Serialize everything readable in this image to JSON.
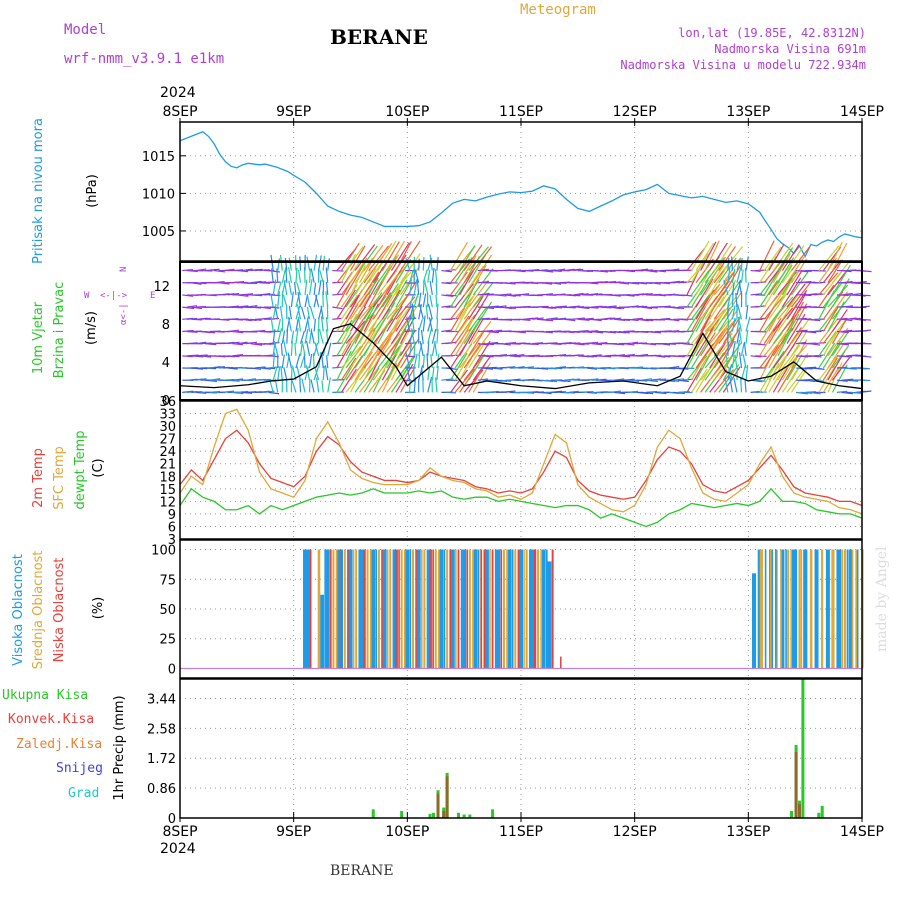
{
  "header": {
    "model_label": "Model",
    "model_name": "wrf-nmm_v3.9.1 e1km",
    "station": "BERANE",
    "meteogram": "Meteogram",
    "lonlat": "lon,lat (19.85E, 42.8312N)",
    "elevation": "Nadmorska Visina 691m",
    "model_elevation": "Nadmorska Visina u modelu 722.934m",
    "year_top": "2024",
    "year_bottom": "2024",
    "footer_station": "BERANE",
    "watermark": "made by Angel"
  },
  "colors": {
    "pressure": "#1e9be6",
    "temp2m": "#e8413c",
    "sfc": "#e0a83a",
    "dewpt": "#28c828",
    "purple": "#b040d0",
    "cloud_high": "#1e9be6",
    "cloud_mid": "#e0a83a",
    "cloud_low": "#e8413c",
    "precip_total": "#28c828",
    "precip_conv": "#e8413c",
    "precip_frz": "#f08030",
    "precip_snow": "#4040e0",
    "precip_hail": "#20c8c8"
  },
  "chart_data": [
    {
      "type": "line",
      "panel": "pressure",
      "ylabel_main": "Pritisak na nivou mora",
      "ylabel_unit": "(hPa)",
      "x_ticks": [
        "8SEP",
        "9SEP",
        "10SEP",
        "11SEP",
        "12SEP",
        "13SEP",
        "14SEP"
      ],
      "ylim": [
        1001,
        1019.5
      ],
      "y_ticks": [
        "1005",
        "1010",
        "1015"
      ],
      "series": [
        {
          "x": [
            0,
            0.05,
            0.1,
            0.15,
            0.2,
            0.25,
            0.3,
            0.35,
            0.4,
            0.45,
            0.5,
            0.55,
            0.6,
            0.65,
            0.7,
            0.75,
            0.8,
            0.85,
            0.9,
            0.95,
            1.0,
            1.1,
            1.2,
            1.3,
            1.4,
            1.5,
            1.6,
            1.7,
            1.8,
            1.9,
            2.0,
            2.1,
            2.2,
            2.3,
            2.4,
            2.5,
            2.6,
            2.7,
            2.8,
            2.9,
            3.0,
            3.1,
            3.2,
            3.3,
            3.4,
            3.5,
            3.6,
            3.7,
            3.8,
            3.9,
            4.0,
            4.1,
            4.2,
            4.3,
            4.4,
            4.5,
            4.6,
            4.7,
            4.8,
            4.9,
            5.0,
            5.1,
            5.15,
            5.2,
            5.25,
            5.3,
            5.35,
            5.4,
            5.45,
            5.5,
            5.55,
            5.6,
            5.65,
            5.7,
            5.75,
            5.8,
            5.85,
            5.9,
            5.95,
            6.0
          ],
          "values": [
            1017.0,
            1017.3,
            1017.6,
            1017.9,
            1018.2,
            1017.6,
            1016.6,
            1015.2,
            1014.2,
            1013.6,
            1013.4,
            1013.8,
            1014.0,
            1013.9,
            1013.8,
            1013.9,
            1013.7,
            1013.5,
            1013.2,
            1012.9,
            1012.4,
            1011.5,
            1010.0,
            1008.3,
            1007.6,
            1007.1,
            1006.8,
            1006.2,
            1005.6,
            1005.6,
            1005.6,
            1005.7,
            1006.2,
            1007.4,
            1008.7,
            1009.2,
            1009.0,
            1009.5,
            1009.9,
            1010.2,
            1010.1,
            1010.3,
            1011.0,
            1010.6,
            1009.2,
            1008.0,
            1007.6,
            1008.3,
            1009.0,
            1009.8,
            1010.2,
            1010.5,
            1011.2,
            1010.0,
            1009.7,
            1009.4,
            1009.6,
            1009.2,
            1008.8,
            1009.0,
            1008.6,
            1007.5,
            1006.3,
            1005.2,
            1004.0,
            1003.3,
            1002.8,
            1002.0,
            1003.0,
            1001.6,
            1003.2,
            1003.0,
            1003.5,
            1003.8,
            1003.6,
            1004.2,
            1004.6,
            1004.4,
            1004.2,
            1004.1
          ]
        }
      ]
    },
    {
      "type": "line",
      "panel": "wind",
      "ylabel_main": "10m Vjetar",
      "ylabel_sub": "Brzina i Pravac",
      "ylabel_unit": "(m/s)",
      "compass": [
        "N",
        "E",
        "W"
      ],
      "ylim": [
        0,
        14.5
      ],
      "y_ticks": [
        "0",
        "4",
        "8",
        "12"
      ],
      "series": [
        {
          "name": "wind speed",
          "color": "black",
          "x": [
            0,
            0.3,
            0.6,
            0.8,
            1.0,
            1.2,
            1.35,
            1.5,
            1.7,
            1.9,
            2.0,
            2.1,
            2.3,
            2.5,
            2.7,
            3.0,
            3.3,
            3.6,
            3.9,
            4.2,
            4.4,
            4.6,
            4.8,
            5.0,
            5.2,
            5.4,
            5.6,
            5.8,
            6.0
          ],
          "values": [
            1.5,
            1.3,
            1.6,
            2.0,
            2.2,
            3.5,
            7.5,
            8.0,
            6.0,
            3.5,
            1.5,
            2.5,
            4.5,
            1.5,
            2.0,
            1.5,
            1.2,
            1.8,
            2.0,
            1.5,
            2.5,
            7.0,
            3.0,
            2.0,
            2.5,
            4.0,
            2.0,
            1.5,
            1.2
          ]
        }
      ]
    },
    {
      "type": "line",
      "panel": "temperature",
      "ylabel_2m": "2m Temp",
      "ylabel_sfc": "SFC Temp",
      "ylabel_dew": "dewpt Temp",
      "ylabel_unit": "(C)",
      "ylim": [
        3,
        36
      ],
      "y_ticks": [
        "3",
        "6",
        "9",
        "12",
        "15",
        "18",
        "21",
        "24",
        "27",
        "30",
        "33",
        "36"
      ],
      "series": [
        {
          "name": "2m Temp",
          "x": [
            0,
            0.1,
            0.2,
            0.3,
            0.4,
            0.5,
            0.6,
            0.7,
            0.8,
            0.9,
            1.0,
            1.1,
            1.2,
            1.3,
            1.4,
            1.5,
            1.6,
            1.7,
            1.8,
            1.9,
            2.0,
            2.1,
            2.2,
            2.3,
            2.4,
            2.5,
            2.6,
            2.7,
            2.8,
            2.9,
            3.0,
            3.1,
            3.2,
            3.3,
            3.4,
            3.5,
            3.6,
            3.7,
            3.8,
            3.9,
            4.0,
            4.1,
            4.2,
            4.3,
            4.4,
            4.5,
            4.6,
            4.7,
            4.8,
            4.9,
            5.0,
            5.1,
            5.2,
            5.3,
            5.4,
            5.5,
            5.6,
            5.7,
            5.8,
            5.9,
            6.0
          ],
          "values": [
            16,
            19.5,
            17,
            22,
            27,
            29,
            26,
            21,
            17.5,
            16.5,
            15.5,
            18,
            24,
            27.5,
            25.5,
            21.5,
            19,
            18,
            17,
            17,
            16.5,
            17,
            19,
            18,
            17.5,
            17,
            15.5,
            15,
            14,
            14.5,
            14,
            15,
            19,
            24,
            22.5,
            17,
            14.5,
            13.5,
            13,
            12.5,
            13,
            17,
            22,
            25,
            24,
            21,
            16,
            14.5,
            14,
            15.5,
            17,
            20,
            23,
            19.5,
            15.5,
            14,
            13.5,
            13,
            12,
            12,
            11
          ]
        },
        {
          "name": "SFC Temp",
          "x": [
            0,
            0.1,
            0.2,
            0.3,
            0.4,
            0.5,
            0.6,
            0.7,
            0.8,
            0.9,
            1.0,
            1.1,
            1.2,
            1.3,
            1.4,
            1.5,
            1.6,
            1.7,
            1.8,
            1.9,
            2.0,
            2.1,
            2.2,
            2.3,
            2.4,
            2.5,
            2.6,
            2.7,
            2.8,
            2.9,
            3.0,
            3.1,
            3.2,
            3.3,
            3.4,
            3.5,
            3.6,
            3.7,
            3.8,
            3.9,
            4.0,
            4.1,
            4.2,
            4.3,
            4.4,
            4.5,
            4.6,
            4.7,
            4.8,
            4.9,
            5.0,
            5.1,
            5.2,
            5.3,
            5.4,
            5.5,
            5.6,
            5.7,
            5.8,
            5.9,
            6.0
          ],
          "values": [
            14,
            18,
            16,
            25,
            33,
            34,
            29,
            19,
            15,
            14,
            13,
            17,
            27,
            31,
            26,
            19.5,
            17.5,
            16.5,
            16,
            16,
            16,
            17,
            20,
            18,
            17,
            16.5,
            15,
            14.5,
            13,
            13.5,
            12.5,
            14,
            21,
            28,
            26,
            16,
            13,
            11.5,
            10,
            9.5,
            11,
            16,
            25,
            29,
            27,
            20,
            14,
            12.5,
            12,
            14,
            16,
            21,
            25,
            18,
            14,
            13,
            12.5,
            12,
            10.5,
            10,
            9
          ]
        },
        {
          "name": "dewpt Temp",
          "x": [
            0,
            0.1,
            0.2,
            0.3,
            0.4,
            0.5,
            0.6,
            0.7,
            0.8,
            0.9,
            1.0,
            1.1,
            1.2,
            1.3,
            1.4,
            1.5,
            1.6,
            1.7,
            1.8,
            1.9,
            2.0,
            2.1,
            2.2,
            2.3,
            2.4,
            2.5,
            2.6,
            2.7,
            2.8,
            2.9,
            3.0,
            3.1,
            3.2,
            3.3,
            3.4,
            3.5,
            3.6,
            3.7,
            3.8,
            3.9,
            4.0,
            4.1,
            4.2,
            4.3,
            4.4,
            4.5,
            4.6,
            4.7,
            4.8,
            4.9,
            5.0,
            5.1,
            5.2,
            5.3,
            5.4,
            5.5,
            5.6,
            5.7,
            5.8,
            5.9,
            6.0
          ],
          "values": [
            11,
            15,
            13,
            12,
            10,
            10,
            11,
            9,
            11,
            10,
            11,
            12,
            13,
            13.5,
            14,
            13.5,
            14,
            15,
            14,
            14,
            14,
            14.5,
            14,
            14.5,
            13,
            12.5,
            13,
            13,
            12,
            12.5,
            12,
            11.5,
            11,
            10.5,
            11,
            11,
            10,
            8,
            9,
            8,
            7,
            6,
            7,
            9,
            10,
            11.5,
            11,
            10.5,
            11,
            11.5,
            11,
            12,
            15,
            12,
            12,
            11.5,
            10,
            9.5,
            9,
            9,
            8
          ]
        }
      ]
    },
    {
      "type": "bar",
      "panel": "cloud",
      "ylabel_high": "Visoka Oblacnost",
      "ylabel_mid": "Srednja Oblacnost",
      "ylabel_low": "Niska Oblacnost",
      "ylabel_unit": "(%)",
      "ylim": [
        0,
        100
      ],
      "y_ticks": [
        "0",
        "25",
        "50",
        "75",
        "100"
      ],
      "high": {
        "x": [
          1.1,
          1.13,
          1.25,
          1.3,
          1.4,
          1.5,
          1.6,
          1.7,
          1.8,
          1.9,
          2.0,
          2.1,
          2.2,
          2.3,
          2.4,
          2.5,
          2.6,
          2.7,
          2.8,
          2.9,
          3.0,
          3.1,
          3.2,
          3.25,
          5.05,
          5.1,
          5.2,
          5.3,
          5.4,
          5.5,
          5.6,
          5.7,
          5.8,
          5.9
        ],
        "values": [
          100,
          100,
          62,
          100,
          100,
          100,
          100,
          100,
          100,
          100,
          100,
          100,
          100,
          100,
          100,
          100,
          100,
          100,
          100,
          100,
          100,
          100,
          100,
          90,
          80,
          100,
          100,
          100,
          100,
          100,
          100,
          100,
          100,
          100
        ]
      },
      "mid": {
        "x": [
          1.22,
          1.35,
          1.45,
          1.55,
          1.65,
          1.75,
          1.85,
          1.95,
          2.05,
          2.15,
          2.25,
          2.35,
          2.45,
          2.55,
          2.65,
          2.75,
          2.85,
          2.95,
          3.05,
          3.15,
          3.22,
          3.28,
          5.12,
          5.25,
          5.35,
          5.45,
          5.55,
          5.65,
          5.75,
          5.85,
          5.95
        ],
        "values": [
          100,
          100,
          100,
          100,
          100,
          100,
          100,
          100,
          100,
          100,
          100,
          100,
          100,
          100,
          100,
          100,
          100,
          100,
          100,
          100,
          100,
          100,
          100,
          100,
          100,
          100,
          100,
          100,
          100,
          100,
          100
        ]
      },
      "low": {
        "x": [
          1.15,
          1.42,
          1.62,
          1.9,
          2.2,
          2.45,
          2.65,
          2.75,
          3.12,
          3.35
        ],
        "values": [
          100,
          100,
          100,
          100,
          100,
          100,
          100,
          100,
          100,
          10
        ]
      }
    },
    {
      "type": "bar",
      "panel": "precip",
      "legend": [
        "Ukupna Kisa",
        "Konvek.Kisa",
        "Zaledj.Kisa",
        "Snijeg",
        "Grad"
      ],
      "ylabel_unit": "1hr Precip (mm)",
      "ylim": [
        0,
        4.0
      ],
      "y_ticks": [
        "0",
        "0.86",
        "1.72",
        "2.58",
        "3.44"
      ],
      "total": {
        "x": [
          1.7,
          1.95,
          2.2,
          2.23,
          2.27,
          2.32,
          2.35,
          2.45,
          2.5,
          2.55,
          2.75,
          5.38,
          5.42,
          5.45,
          5.48,
          5.62,
          5.65
        ],
        "values": [
          0.25,
          0.2,
          0.12,
          0.15,
          0.8,
          0.3,
          1.3,
          0.15,
          0.1,
          0.1,
          0.25,
          0.2,
          2.1,
          0.5,
          4.0,
          0.15,
          0.35
        ]
      },
      "conv": {
        "x": [
          2.27,
          2.32,
          2.35,
          5.42,
          5.45
        ],
        "values": [
          0.7,
          0.2,
          1.2,
          1.9,
          0.4
        ]
      }
    }
  ]
}
